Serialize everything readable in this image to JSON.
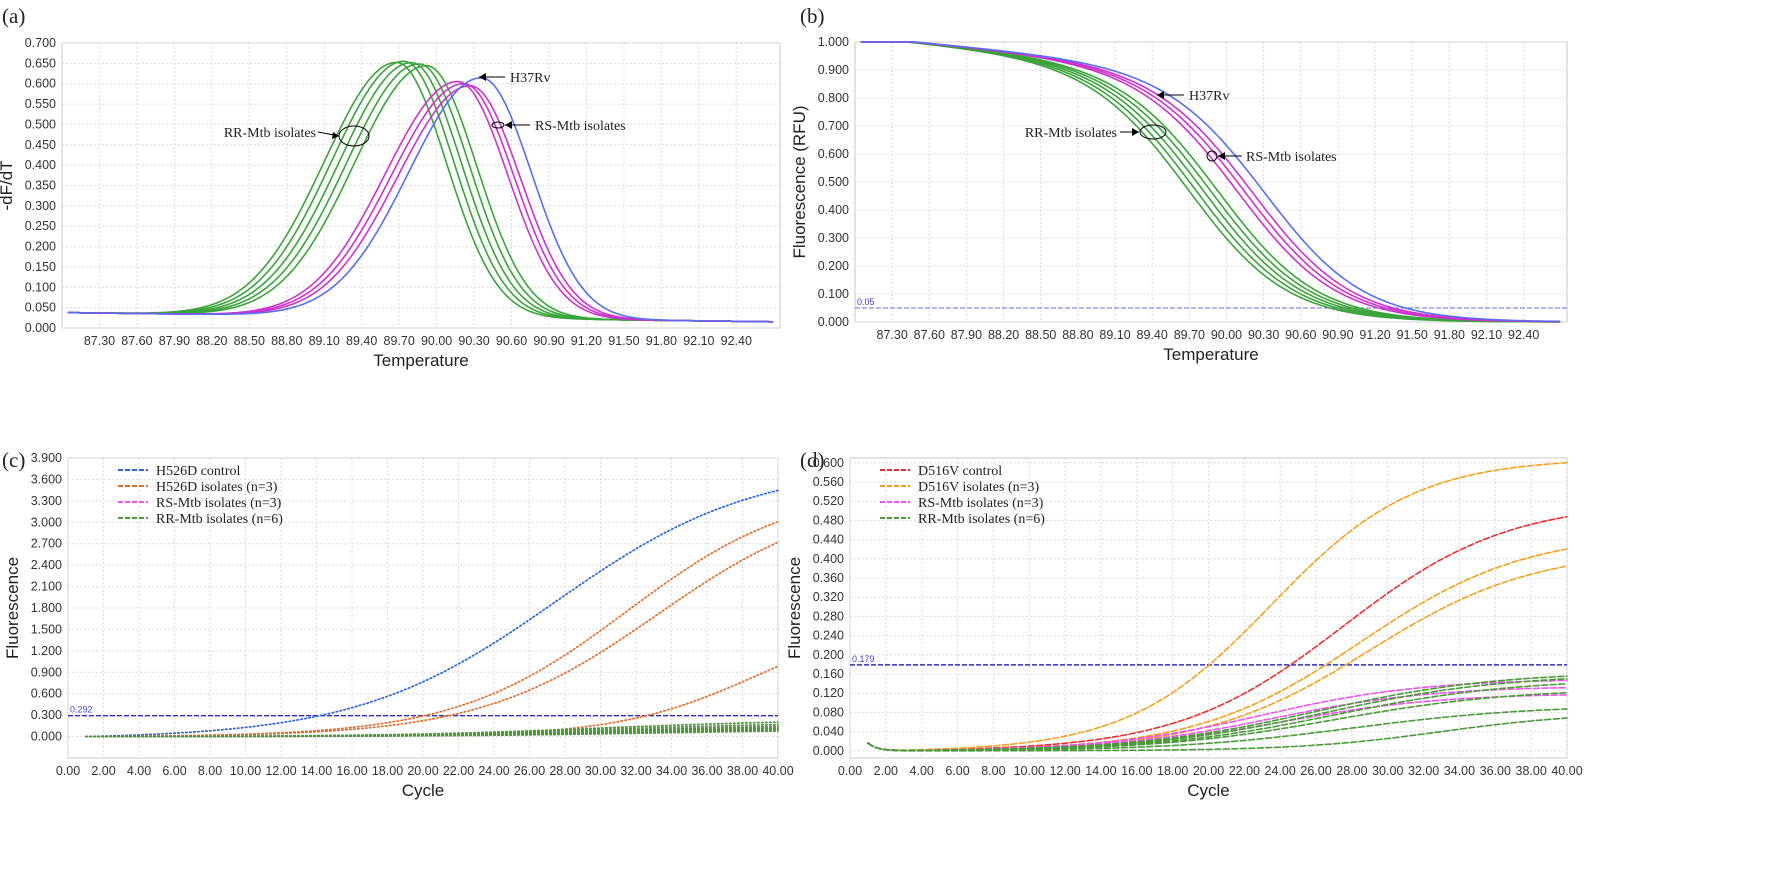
{
  "figure": {
    "panel_letters": [
      "(a)",
      "(b)",
      "(c)",
      "(d)"
    ]
  },
  "chart_data": [
    {
      "id": "a",
      "type": "line",
      "title": "",
      "xlabel": "Temperature",
      "ylabel": "-dF/dT",
      "xlim": [
        87.0,
        92.75
      ],
      "ylim": [
        0,
        0.7
      ],
      "xticks": [
        "87.30",
        "87.60",
        "87.90",
        "88.20",
        "88.50",
        "88.80",
        "89.10",
        "89.40",
        "89.70",
        "90.00",
        "90.30",
        "90.60",
        "90.90",
        "91.20",
        "91.50",
        "91.80",
        "92.10",
        "92.40"
      ],
      "yticks": [
        "0.000",
        "0.050",
        "0.100",
        "0.150",
        "0.200",
        "0.250",
        "0.300",
        "0.350",
        "0.400",
        "0.450",
        "0.500",
        "0.550",
        "0.600",
        "0.650",
        "0.700"
      ],
      "series": [
        {
          "name": "RR-Mtb isolates",
          "color": "#3aa33a",
          "count": 5,
          "peak_x": [
            89.68,
            89.74,
            89.8,
            89.86,
            89.92
          ],
          "peak_y": [
            0.655,
            0.658,
            0.655,
            0.652,
            0.648
          ]
        },
        {
          "name": "RS-Mtb isolates",
          "color": "#cc33cc",
          "count": 3,
          "peak_x": [
            90.17,
            90.22,
            90.27
          ],
          "peak_y": [
            0.61,
            0.605,
            0.6
          ]
        },
        {
          "name": "H37Rv",
          "color": "#5b6cf0",
          "count": 1,
          "peak_x": [
            90.36
          ],
          "peak_y": [
            0.62
          ]
        }
      ],
      "annotations": [
        "RR-Mtb isolates",
        "RS-Mtb isolates",
        "H37Rv"
      ]
    },
    {
      "id": "b",
      "type": "line",
      "title": "",
      "xlabel": "Temperature",
      "ylabel": "Fluorescence (RFU)",
      "xlim": [
        87.0,
        92.75
      ],
      "ylim": [
        0,
        1.0
      ],
      "xticks": [
        "87.30",
        "87.60",
        "87.90",
        "88.20",
        "88.50",
        "88.80",
        "89.10",
        "89.40",
        "89.70",
        "90.00",
        "90.30",
        "90.60",
        "90.90",
        "91.20",
        "91.50",
        "91.80",
        "92.10",
        "92.40"
      ],
      "yticks": [
        "0.000",
        "0.100",
        "0.200",
        "0.300",
        "0.400",
        "0.500",
        "0.600",
        "0.700",
        "0.800",
        "0.900",
        "1.000"
      ],
      "threshold": {
        "value": 0.05,
        "label": "0.05"
      },
      "series": [
        {
          "name": "RR-Mtb isolates",
          "color": "#3aa33a",
          "count": 5,
          "midpoint_x": [
            89.72,
            89.78,
            89.84,
            89.9,
            89.96
          ]
        },
        {
          "name": "RS-Mtb isolates",
          "color": "#cc33cc",
          "count": 3,
          "midpoint_x": [
            90.12,
            90.18,
            90.24
          ]
        },
        {
          "name": "H37Rv",
          "color": "#5b6cf0",
          "count": 1,
          "midpoint_x": [
            90.34
          ]
        }
      ],
      "annotations": [
        "H37Rv",
        "RR-Mtb isolates",
        "RS-Mtb isolates"
      ]
    },
    {
      "id": "c",
      "type": "line",
      "title": "",
      "xlabel": "Cycle",
      "ylabel": "Fluorescence",
      "xlim": [
        0,
        40
      ],
      "ylim": [
        -0.3,
        3.9
      ],
      "xticks": [
        "0.00",
        "2.00",
        "4.00",
        "6.00",
        "8.00",
        "10.00",
        "12.00",
        "14.00",
        "16.00",
        "18.00",
        "20.00",
        "22.00",
        "24.00",
        "26.00",
        "28.00",
        "30.00",
        "32.00",
        "34.00",
        "36.00",
        "38.00",
        "40.00"
      ],
      "yticks": [
        "0.000",
        "0.300",
        "0.600",
        "0.900",
        "1.200",
        "1.500",
        "1.800",
        "2.100",
        "2.400",
        "2.700",
        "3.000",
        "3.300",
        "3.600",
        "3.900"
      ],
      "threshold": {
        "value": 0.292,
        "label": "0.292"
      },
      "legend": [
        "H526D control",
        "H526D isolates (n=3)",
        "RS-Mtb isolates (n=3)",
        "RR-Mtb isolates (n=6)"
      ],
      "series": [
        {
          "name": "H526D control",
          "color": "#2f63d6",
          "final": [
            3.82
          ],
          "midpoint": [
            27.5
          ],
          "steep": [
            5.6
          ]
        },
        {
          "name": "H526D isolates (n=3)",
          "color": "#e07030",
          "final": [
            3.52,
            3.42,
            1.75
          ],
          "midpoint": [
            31.5,
            33.2,
            39.0
          ],
          "steep": [
            4.8,
            5.0,
            4.0
          ]
        },
        {
          "name": "RS-Mtb isolates (n=3)",
          "color": "#ee55ee",
          "final": [
            0.17,
            0.15,
            0.13
          ],
          "midpoint": [
            30,
            31,
            32
          ],
          "steep": [
            6,
            6,
            6
          ]
        },
        {
          "name": "RR-Mtb isolates (n=6)",
          "color": "#4a9a3a",
          "final": [
            0.24,
            0.2,
            0.17,
            0.14,
            0.12,
            0.1
          ],
          "midpoint": [
            30,
            30,
            31,
            31,
            32,
            33
          ],
          "steep": [
            6,
            6,
            6,
            6,
            6,
            6
          ]
        }
      ]
    },
    {
      "id": "d",
      "type": "line",
      "title": "",
      "xlabel": "Cycle",
      "ylabel": "Fluorescence",
      "xlim": [
        0,
        40
      ],
      "ylim": [
        -0.015,
        0.61
      ],
      "xticks": [
        "0.00",
        "2.00",
        "4.00",
        "6.00",
        "8.00",
        "10.00",
        "12.00",
        "14.00",
        "16.00",
        "18.00",
        "20.00",
        "22.00",
        "24.00",
        "26.00",
        "28.00",
        "30.00",
        "32.00",
        "34.00",
        "36.00",
        "38.00",
        "40.00"
      ],
      "yticks": [
        "0.000",
        "0.040",
        "0.080",
        "0.120",
        "0.160",
        "0.200",
        "0.240",
        "0.280",
        "0.320",
        "0.360",
        "0.400",
        "0.440",
        "0.480",
        "0.520",
        "0.560",
        "0.600"
      ],
      "threshold": {
        "value": 0.179,
        "label": "0.179"
      },
      "legend": [
        "D516V control",
        "D516V isolates (n=3)",
        "RS-Mtb isolates (n=3)",
        "RR-Mtb isolates (n=6)"
      ],
      "series": [
        {
          "name": "D516V control",
          "color": "#e83030",
          "final": [
            0.52
          ],
          "midpoint": [
            27.5
          ],
          "steep": [
            4.6
          ]
        },
        {
          "name": "D516V isolates (n=3)",
          "color": "#f2a020",
          "final": [
            0.61,
            0.455,
            0.42
          ],
          "midpoint": [
            23.5,
            28.5,
            29.0
          ],
          "steep": [
            4.0,
            4.6,
            4.6
          ]
        },
        {
          "name": "RS-Mtb isolates (n=3)",
          "color": "#ee55ee",
          "final": [
            0.15,
            0.135,
            0.12
          ],
          "midpoint": [
            23,
            23.5,
            24
          ],
          "steep": [
            4.5,
            4.5,
            4.5
          ]
        },
        {
          "name": "RR-Mtb isolates (n=6)",
          "color": "#4a9a3a",
          "final": [
            0.165,
            0.16,
            0.15,
            0.13,
            0.095,
            0.08
          ],
          "midpoint": [
            26,
            26.5,
            27,
            27,
            28,
            33
          ],
          "steep": [
            5,
            5,
            5,
            5,
            5,
            4
          ]
        }
      ]
    }
  ]
}
